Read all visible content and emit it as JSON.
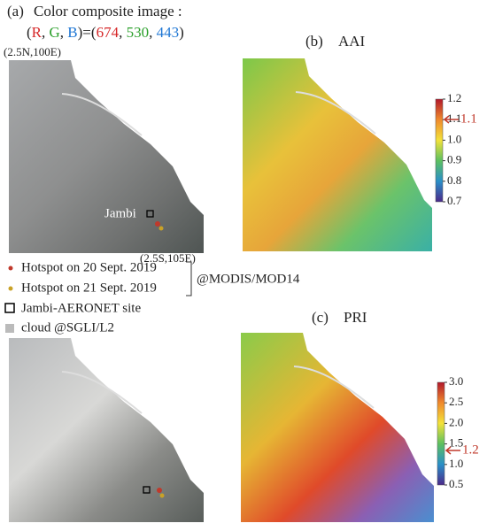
{
  "panel_a": {
    "label": "(a)",
    "title": "Color composite image :",
    "composite": {
      "open": "(",
      "r": "R",
      "sep1": ", ",
      "g": "G",
      "sep2": ", ",
      "b": "B",
      "mid": ")=(",
      "rv": "674",
      "sep3": ", ",
      "gv": "530",
      "sep4": ", ",
      "bv": "443",
      "close": ")"
    },
    "corner_nw": "(2.5N,100E)",
    "corner_se": "(2.5S,105E)",
    "site": "Jambi"
  },
  "legend": {
    "hotspot_20": "Hotspot on 20 Sept. 2019",
    "hotspot_21": "Hotspot on 21 Sept. 2019",
    "source": "@MODIS/MOD14",
    "site": "Jambi-AERONET site",
    "cloud": "cloud @SGLI/L2"
  },
  "panel_b": {
    "label": "(b)",
    "title": "AAI",
    "ticks": [
      "1.2",
      "1.1",
      "1.0",
      "0.9",
      "0.8",
      "0.7"
    ],
    "marker": "1.1"
  },
  "panel_c": {
    "label": "(c)",
    "title": "PRI",
    "ticks": [
      "3.0",
      "2.5",
      "2.0",
      "1.5",
      "1.0",
      "0.5"
    ],
    "marker": "1.2"
  }
}
